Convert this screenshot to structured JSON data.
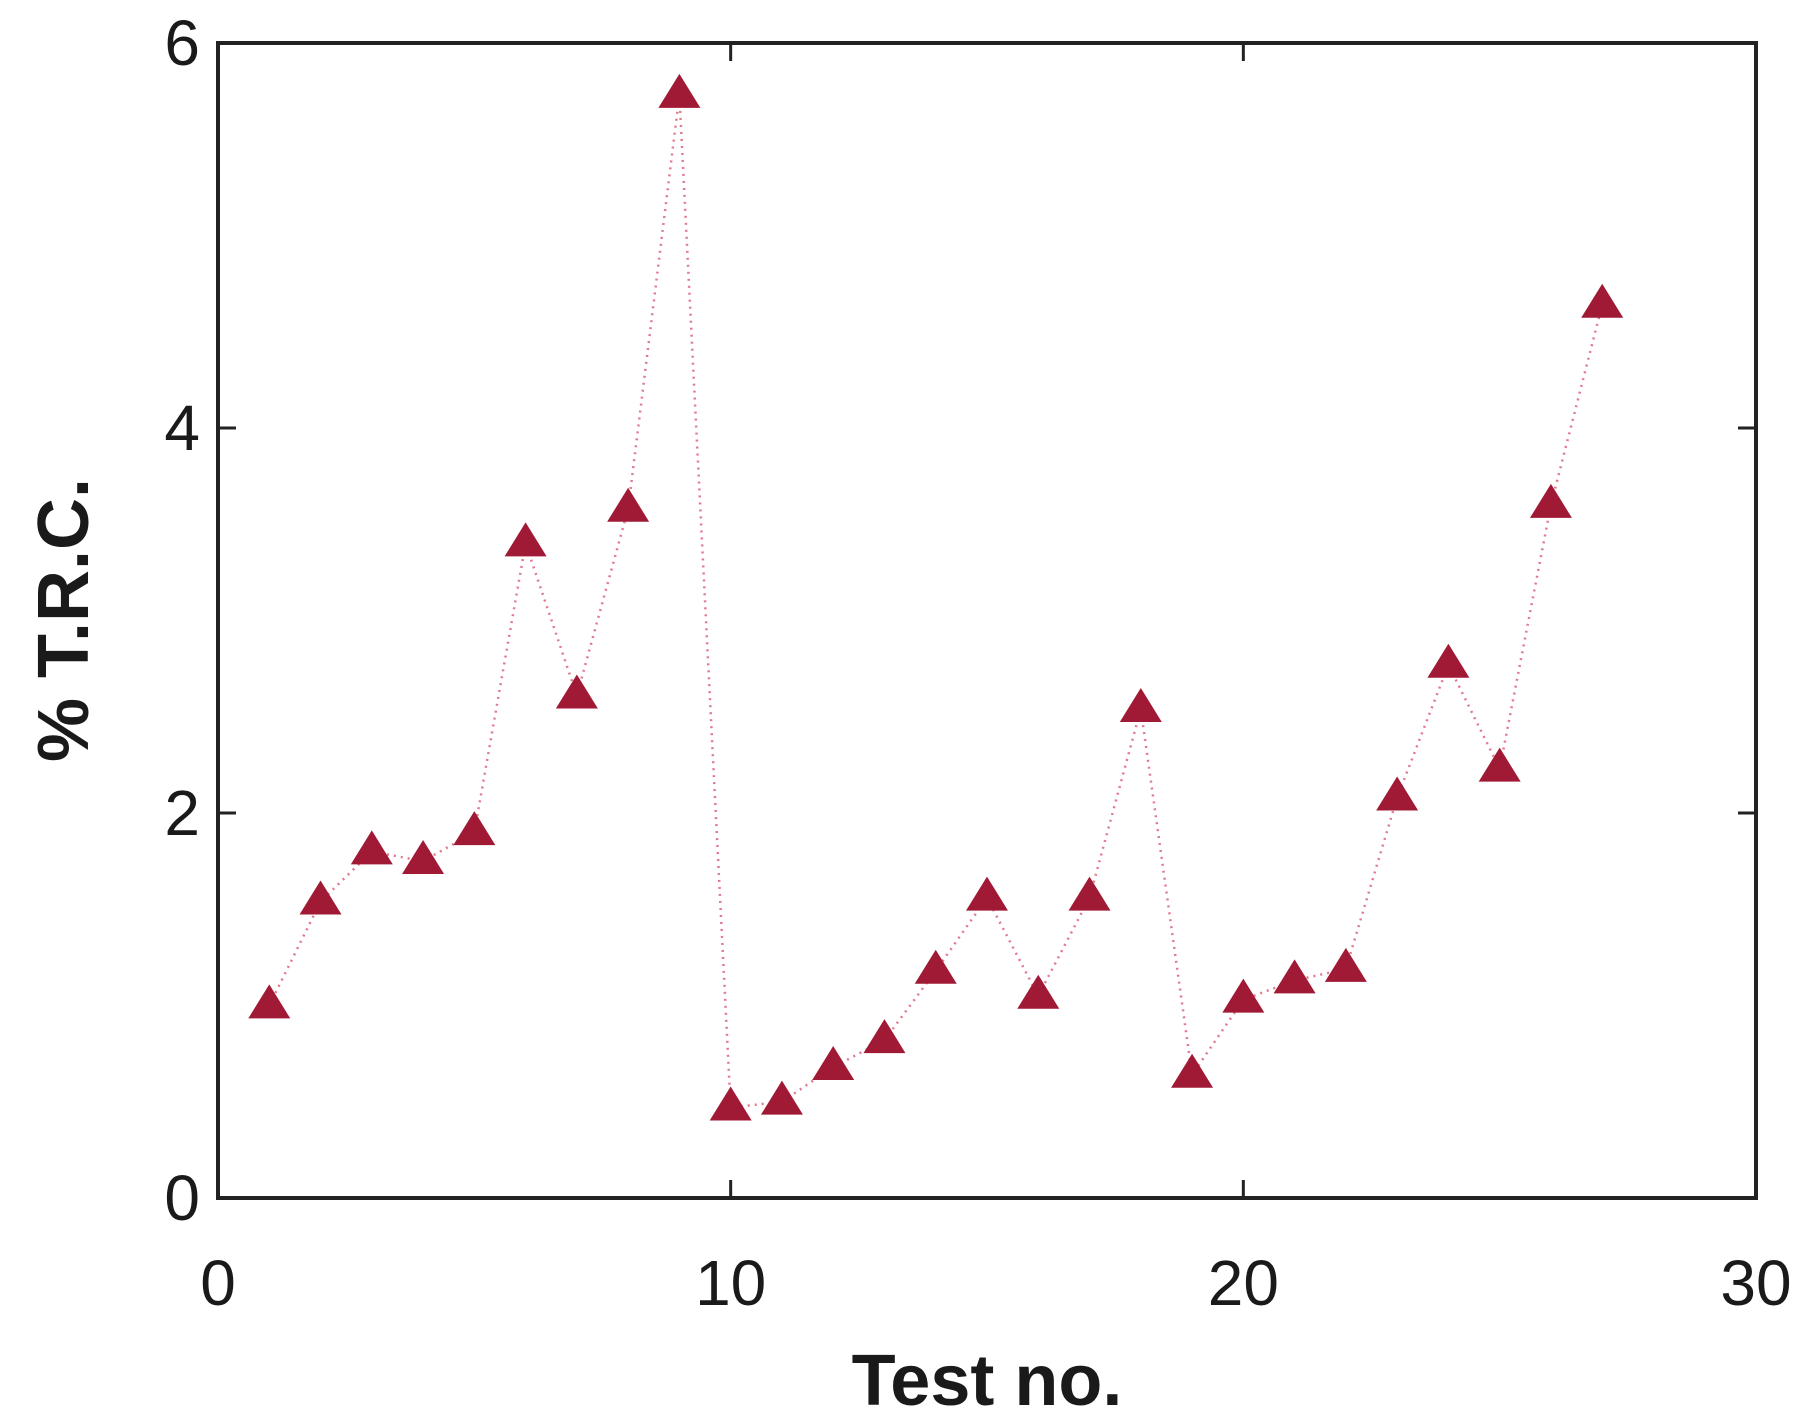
{
  "chart_data": {
    "type": "line",
    "x_label": "Test no.",
    "y_label": "% T.R.C.",
    "x": [
      1,
      2,
      3,
      4,
      5,
      6,
      7,
      8,
      9,
      10,
      11,
      12,
      13,
      14,
      15,
      16,
      17,
      18,
      19,
      20,
      21,
      22,
      23,
      24,
      25,
      26,
      27
    ],
    "series": [
      {
        "color": "#a01a35",
        "values": [
          1.0,
          1.54,
          1.8,
          1.75,
          1.9,
          3.4,
          2.61,
          3.58,
          5.73,
          0.47,
          0.5,
          0.68,
          0.82,
          1.18,
          1.56,
          1.05,
          1.56,
          2.54,
          0.64,
          1.03,
          1.13,
          1.19,
          2.08,
          2.77,
          2.23,
          3.6,
          4.64
        ]
      }
    ],
    "xlim": [
      0,
      30
    ],
    "xticks": [
      0,
      10,
      20,
      30
    ],
    "ylim": [
      0,
      6
    ],
    "yticks": [
      0,
      2,
      4,
      6
    ]
  }
}
